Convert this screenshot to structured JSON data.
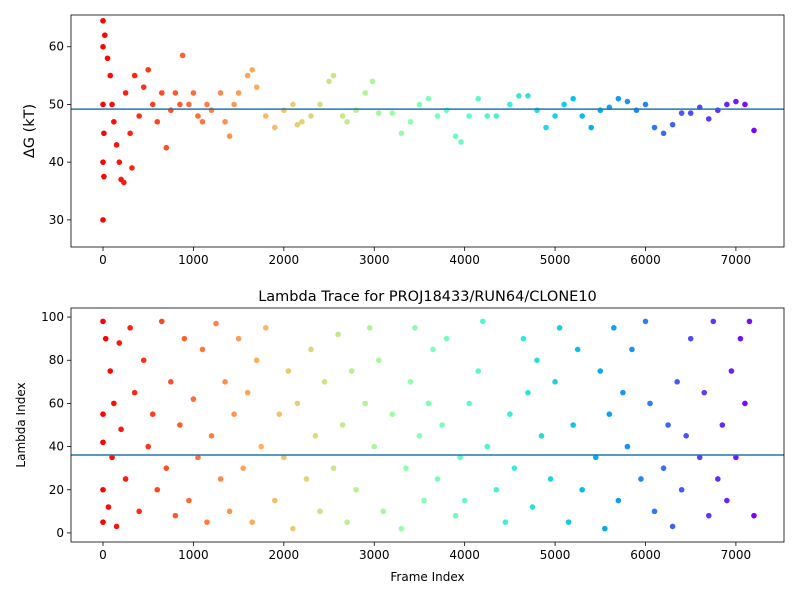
{
  "chart_data": [
    {
      "type": "scatter",
      "ylabel": "ΔG (kT)",
      "colormap": "rainbow_r",
      "hline": 49.2,
      "hline_color": "#1f77b4",
      "xlim": [
        -354,
        7532
      ],
      "ylim": [
        25.3,
        65.5
      ],
      "xticks": [
        0,
        1000,
        2000,
        3000,
        4000,
        5000,
        6000,
        7000
      ],
      "yticks": [
        30,
        40,
        50,
        60
      ],
      "x": [
        0,
        0,
        0,
        0,
        0,
        10,
        10,
        20,
        50,
        80,
        100,
        120,
        150,
        180,
        200,
        230,
        250,
        300,
        320,
        350,
        400,
        450,
        500,
        550,
        600,
        650,
        700,
        750,
        800,
        850,
        880,
        950,
        1000,
        1050,
        1100,
        1150,
        1200,
        1300,
        1350,
        1400,
        1450,
        1500,
        1600,
        1650,
        1700,
        1800,
        1900,
        2000,
        2100,
        2150,
        2200,
        2300,
        2400,
        2500,
        2550,
        2650,
        2700,
        2800,
        2900,
        2980,
        3050,
        3200,
        3300,
        3400,
        3500,
        3600,
        3700,
        3800,
        3900,
        3960,
        4050,
        4150,
        4250,
        4350,
        4500,
        4600,
        4700,
        4800,
        4900,
        5000,
        5100,
        5200,
        5300,
        5400,
        5500,
        5600,
        5700,
        5800,
        5900,
        6000,
        6100,
        6200,
        6300,
        6400,
        6500,
        6600,
        6700,
        6800,
        6900,
        7000,
        7100,
        7200
      ],
      "y": [
        30,
        40,
        50,
        60,
        64.5,
        45,
        37.5,
        62,
        58,
        55,
        50,
        47,
        43,
        40,
        37,
        36.5,
        52,
        45,
        39,
        55,
        48,
        53,
        56,
        50,
        47,
        52,
        42.5,
        49,
        52,
        50,
        58.5,
        50,
        52,
        48,
        47,
        50,
        49,
        52,
        47,
        44.5,
        50,
        52,
        55,
        56,
        53,
        48,
        46,
        49,
        50,
        46.5,
        47,
        48,
        50,
        54,
        55,
        48,
        47,
        49,
        52,
        54,
        48.5,
        48.5,
        45,
        47,
        50,
        51,
        48,
        49,
        44.5,
        43.5,
        48,
        51,
        48,
        48,
        50,
        51.5,
        51.5,
        49,
        46,
        48,
        50,
        51,
        48,
        46,
        49,
        49.5,
        51,
        50.5,
        49,
        50,
        46,
        45,
        46.5,
        48.5,
        48.5,
        49.5,
        47.5,
        49,
        50,
        50.5,
        50,
        45.5
      ]
    },
    {
      "type": "scatter",
      "title": "Lambda Trace for PROJ18433/RUN64/CLONE10",
      "xlabel": "Frame Index",
      "ylabel": "Lambda Index",
      "colormap": "rainbow_r",
      "hline": 36.1,
      "hline_color": "#1f77b4",
      "xlim": [
        -354,
        7532
      ],
      "ylim": [
        -4.2,
        104.2
      ],
      "xticks": [
        0,
        1000,
        2000,
        3000,
        4000,
        5000,
        6000,
        7000
      ],
      "yticks": [
        0,
        20,
        40,
        60,
        80,
        100
      ],
      "x": [
        0,
        0,
        0,
        0,
        0,
        30,
        60,
        80,
        100,
        120,
        150,
        180,
        200,
        250,
        300,
        350,
        400,
        450,
        500,
        550,
        600,
        650,
        700,
        750,
        800,
        850,
        900,
        950,
        1000,
        1050,
        1100,
        1150,
        1200,
        1250,
        1300,
        1350,
        1400,
        1450,
        1500,
        1550,
        1600,
        1650,
        1700,
        1750,
        1800,
        1900,
        1950,
        2000,
        2050,
        2100,
        2150,
        2250,
        2300,
        2350,
        2400,
        2450,
        2550,
        2600,
        2650,
        2700,
        2750,
        2800,
        2900,
        2950,
        3000,
        3050,
        3100,
        3200,
        3300,
        3350,
        3400,
        3450,
        3500,
        3550,
        3600,
        3650,
        3700,
        3750,
        3800,
        3900,
        3950,
        4000,
        4050,
        4150,
        4200,
        4250,
        4350,
        4450,
        4500,
        4550,
        4650,
        4700,
        4750,
        4800,
        4850,
        4950,
        5000,
        5050,
        5150,
        5200,
        5250,
        5300,
        5450,
        5500,
        5550,
        5600,
        5650,
        5700,
        5750,
        5800,
        5850,
        5950,
        6000,
        6050,
        6100,
        6200,
        6250,
        6300,
        6350,
        6400,
        6450,
        6500,
        6600,
        6650,
        6700,
        6750,
        6800,
        6850,
        6900,
        6950,
        7000,
        7050,
        7100,
        7150,
        7200
      ],
      "y": [
        5,
        98,
        42,
        55,
        20,
        90,
        12,
        75,
        35,
        60,
        3,
        88,
        48,
        25,
        95,
        65,
        10,
        80,
        40,
        55,
        20,
        98,
        30,
        70,
        8,
        50,
        90,
        15,
        62,
        35,
        85,
        5,
        45,
        97,
        25,
        70,
        10,
        55,
        90,
        30,
        65,
        5,
        80,
        40,
        95,
        15,
        55,
        35,
        75,
        2,
        60,
        25,
        85,
        45,
        10,
        70,
        30,
        92,
        50,
        5,
        75,
        20,
        60,
        95,
        40,
        80,
        10,
        55,
        2,
        30,
        70,
        95,
        45,
        15,
        60,
        85,
        25,
        50,
        90,
        8,
        35,
        15,
        60,
        75,
        98,
        40,
        20,
        5,
        55,
        30,
        90,
        65,
        12,
        80,
        45,
        25,
        70,
        95,
        5,
        50,
        85,
        20,
        35,
        75,
        2,
        55,
        95,
        15,
        65,
        40,
        85,
        25,
        98,
        60,
        10,
        30,
        50,
        3,
        70,
        20,
        45,
        90,
        35,
        65,
        8,
        98,
        25,
        50,
        15,
        75,
        35,
        90,
        60,
        98,
        8
      ]
    }
  ]
}
